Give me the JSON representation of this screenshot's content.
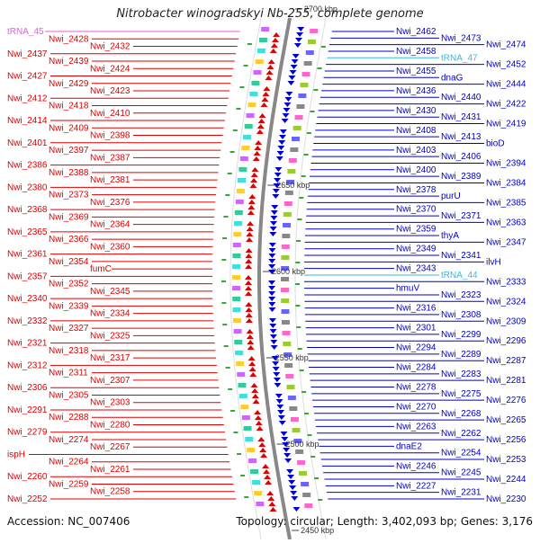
{
  "title": "Nitrobacter winogradskyi Nb-255, complete genome",
  "accession": "Accession: NC_007406",
  "topology": "Topology: circular; Length: 3,402,093 bp; Genes: 3,176",
  "colors": {
    "left_gene": "#e00000",
    "right_gene": "#0000cc",
    "rna": "#e060e0",
    "rna_right": "#33bbdd",
    "backbone": "#888888"
  },
  "ticks": [
    {
      "label": "2700 kbp"
    },
    {
      "label": "2650 kbp"
    },
    {
      "label": "2600 kbp"
    },
    {
      "label": "2550 kbp"
    },
    {
      "label": "2500 kbp"
    },
    {
      "label": "2450 kbp"
    }
  ],
  "left_labels": [
    {
      "text": "tRNA_45",
      "kind": "rna"
    },
    {
      "text": "Nwi_2428",
      "kind": "gene"
    },
    {
      "text": "Nwi_2432",
      "kind": "gene"
    },
    {
      "text": "Nwi_2437",
      "kind": "gene"
    },
    {
      "text": "Nwi_2439",
      "kind": "gene"
    },
    {
      "text": "Nwi_2424",
      "kind": "gene"
    },
    {
      "text": "Nwi_2427",
      "kind": "gene"
    },
    {
      "text": "Nwi_2429",
      "kind": "gene"
    },
    {
      "text": "Nwi_2423",
      "kind": "gene"
    },
    {
      "text": "Nwi_2412",
      "kind": "gene"
    },
    {
      "text": "Nwi_2418",
      "kind": "gene"
    },
    {
      "text": "Nwi_2410",
      "kind": "gene"
    },
    {
      "text": "Nwi_2414",
      "kind": "gene"
    },
    {
      "text": "Nwi_2409",
      "kind": "gene"
    },
    {
      "text": "Nwi_2398",
      "kind": "gene"
    },
    {
      "text": "Nwi_2401",
      "kind": "gene"
    },
    {
      "text": "Nwi_2397",
      "kind": "gene"
    },
    {
      "text": "Nwi_2387",
      "kind": "gene"
    },
    {
      "text": "Nwi_2386",
      "kind": "gene"
    },
    {
      "text": "Nwi_2388",
      "kind": "gene"
    },
    {
      "text": "Nwi_2381",
      "kind": "gene"
    },
    {
      "text": "Nwi_2380",
      "kind": "gene"
    },
    {
      "text": "Nwi_2373",
      "kind": "gene"
    },
    {
      "text": "Nwi_2376",
      "kind": "gene"
    },
    {
      "text": "Nwi_2368",
      "kind": "gene"
    },
    {
      "text": "Nwi_2369",
      "kind": "gene"
    },
    {
      "text": "Nwi_2364",
      "kind": "gene"
    },
    {
      "text": "Nwi_2365",
      "kind": "gene"
    },
    {
      "text": "Nwi_2366",
      "kind": "gene"
    },
    {
      "text": "Nwi_2360",
      "kind": "gene"
    },
    {
      "text": "Nwi_2361",
      "kind": "gene"
    },
    {
      "text": "Nwi_2354",
      "kind": "gene"
    },
    {
      "text": "fumC",
      "kind": "gene"
    },
    {
      "text": "Nwi_2357",
      "kind": "gene"
    },
    {
      "text": "Nwi_2352",
      "kind": "gene"
    },
    {
      "text": "Nwi_2345",
      "kind": "gene"
    },
    {
      "text": "Nwi_2340",
      "kind": "gene"
    },
    {
      "text": "Nwi_2339",
      "kind": "gene"
    },
    {
      "text": "Nwi_2334",
      "kind": "gene"
    },
    {
      "text": "Nwi_2332",
      "kind": "gene"
    },
    {
      "text": "Nwi_2327",
      "kind": "gene"
    },
    {
      "text": "Nwi_2325",
      "kind": "gene"
    },
    {
      "text": "Nwi_2321",
      "kind": "gene"
    },
    {
      "text": "Nwi_2318",
      "kind": "gene"
    },
    {
      "text": "Nwi_2317",
      "kind": "gene"
    },
    {
      "text": "Nwi_2312",
      "kind": "gene"
    },
    {
      "text": "Nwi_2311",
      "kind": "gene"
    },
    {
      "text": "Nwi_2307",
      "kind": "gene"
    },
    {
      "text": "Nwi_2306",
      "kind": "gene"
    },
    {
      "text": "Nwi_2305",
      "kind": "gene"
    },
    {
      "text": "Nwi_2303",
      "kind": "gene"
    },
    {
      "text": "Nwi_2291",
      "kind": "gene"
    },
    {
      "text": "Nwi_2288",
      "kind": "gene"
    },
    {
      "text": "Nwi_2280",
      "kind": "gene"
    },
    {
      "text": "Nwi_2279",
      "kind": "gene"
    },
    {
      "text": "Nwi_2274",
      "kind": "gene"
    },
    {
      "text": "Nwi_2267",
      "kind": "gene"
    },
    {
      "text": "ispH",
      "kind": "gene"
    },
    {
      "text": "Nwi_2264",
      "kind": "gene"
    },
    {
      "text": "Nwi_2261",
      "kind": "gene"
    },
    {
      "text": "Nwi_2260",
      "kind": "gene"
    },
    {
      "text": "Nwi_2259",
      "kind": "gene"
    },
    {
      "text": "Nwi_2258",
      "kind": "gene"
    },
    {
      "text": "Nwi_2252",
      "kind": "gene"
    }
  ],
  "right_labels": [
    {
      "text": "Nwi_2462",
      "kind": "gene"
    },
    {
      "text": "Nwi_2473",
      "kind": "gene"
    },
    {
      "text": "Nwi_2474",
      "kind": "gene"
    },
    {
      "text": "Nwi_2458",
      "kind": "gene"
    },
    {
      "text": "tRNA_47",
      "kind": "rna"
    },
    {
      "text": "Nwi_2452",
      "kind": "gene"
    },
    {
      "text": "Nwi_2455",
      "kind": "gene"
    },
    {
      "text": "dnaG",
      "kind": "gene"
    },
    {
      "text": "Nwi_2444",
      "kind": "gene"
    },
    {
      "text": "Nwi_2436",
      "kind": "gene"
    },
    {
      "text": "Nwi_2440",
      "kind": "gene"
    },
    {
      "text": "Nwi_2422",
      "kind": "gene"
    },
    {
      "text": "Nwi_2430",
      "kind": "gene"
    },
    {
      "text": "Nwi_2431",
      "kind": "gene"
    },
    {
      "text": "Nwi_2419",
      "kind": "gene"
    },
    {
      "text": "Nwi_2408",
      "kind": "gene"
    },
    {
      "text": "Nwi_2413",
      "kind": "gene"
    },
    {
      "text": "bioD",
      "kind": "gene"
    },
    {
      "text": "Nwi_2403",
      "kind": "gene"
    },
    {
      "text": "Nwi_2406",
      "kind": "gene"
    },
    {
      "text": "Nwi_2394",
      "kind": "gene"
    },
    {
      "text": "Nwi_2400",
      "kind": "gene"
    },
    {
      "text": "Nwi_2389",
      "kind": "gene"
    },
    {
      "text": "Nwi_2384",
      "kind": "gene"
    },
    {
      "text": "Nwi_2378",
      "kind": "gene"
    },
    {
      "text": "purU",
      "kind": "gene"
    },
    {
      "text": "Nwi_2385",
      "kind": "gene"
    },
    {
      "text": "Nwi_2370",
      "kind": "gene"
    },
    {
      "text": "Nwi_2371",
      "kind": "gene"
    },
    {
      "text": "Nwi_2363",
      "kind": "gene"
    },
    {
      "text": "Nwi_2359",
      "kind": "gene"
    },
    {
      "text": "thyA",
      "kind": "gene"
    },
    {
      "text": "Nwi_2347",
      "kind": "gene"
    },
    {
      "text": "Nwi_2349",
      "kind": "gene"
    },
    {
      "text": "Nwi_2341",
      "kind": "gene"
    },
    {
      "text": "ilvH",
      "kind": "gene"
    },
    {
      "text": "Nwi_2343",
      "kind": "gene"
    },
    {
      "text": "tRNA_44",
      "kind": "rna"
    },
    {
      "text": "Nwi_2333",
      "kind": "gene"
    },
    {
      "text": "hmuV",
      "kind": "gene"
    },
    {
      "text": "Nwi_2323",
      "kind": "gene"
    },
    {
      "text": "Nwi_2324",
      "kind": "gene"
    },
    {
      "text": "Nwi_2316",
      "kind": "gene"
    },
    {
      "text": "Nwi_2308",
      "kind": "gene"
    },
    {
      "text": "Nwi_2309",
      "kind": "gene"
    },
    {
      "text": "Nwi_2301",
      "kind": "gene"
    },
    {
      "text": "Nwi_2299",
      "kind": "gene"
    },
    {
      "text": "Nwi_2296",
      "kind": "gene"
    },
    {
      "text": "Nwi_2294",
      "kind": "gene"
    },
    {
      "text": "Nwi_2289",
      "kind": "gene"
    },
    {
      "text": "Nwi_2287",
      "kind": "gene"
    },
    {
      "text": "Nwi_2284",
      "kind": "gene"
    },
    {
      "text": "Nwi_2283",
      "kind": "gene"
    },
    {
      "text": "Nwi_2281",
      "kind": "gene"
    },
    {
      "text": "Nwi_2278",
      "kind": "gene"
    },
    {
      "text": "Nwi_2275",
      "kind": "gene"
    },
    {
      "text": "Nwi_2276",
      "kind": "gene"
    },
    {
      "text": "Nwi_2270",
      "kind": "gene"
    },
    {
      "text": "Nwi_2268",
      "kind": "gene"
    },
    {
      "text": "Nwi_2265",
      "kind": "gene"
    },
    {
      "text": "Nwi_2263",
      "kind": "gene"
    },
    {
      "text": "Nwi_2262",
      "kind": "gene"
    },
    {
      "text": "Nwi_2256",
      "kind": "gene"
    },
    {
      "text": "dnaE2",
      "kind": "gene"
    },
    {
      "text": "Nwi_2254",
      "kind": "gene"
    },
    {
      "text": "Nwi_2253",
      "kind": "gene"
    },
    {
      "text": "Nwi_2246",
      "kind": "gene"
    },
    {
      "text": "Nwi_2245",
      "kind": "gene"
    },
    {
      "text": "Nwi_2244",
      "kind": "gene"
    },
    {
      "text": "Nwi_2227",
      "kind": "gene"
    },
    {
      "text": "Nwi_2231",
      "kind": "gene"
    },
    {
      "text": "Nwi_2230",
      "kind": "gene"
    }
  ]
}
